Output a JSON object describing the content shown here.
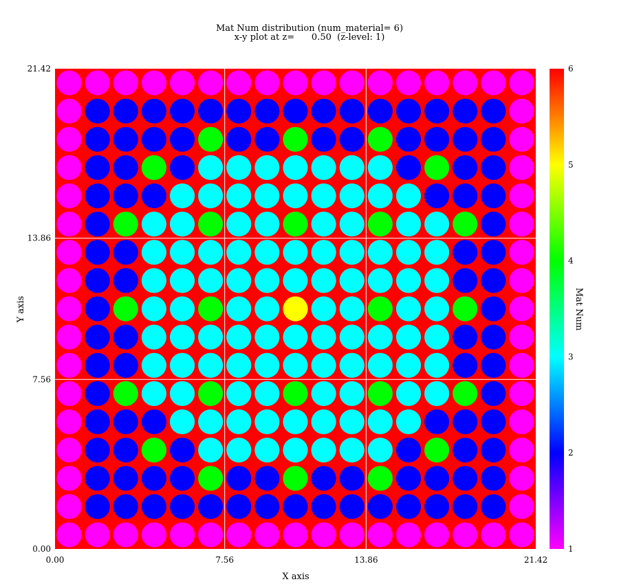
{
  "title_line1": "Mat Num distribution (num_material= 6)",
  "title_line2": "x-y plot at z=      0.50  (z-level: 1)",
  "chart_data": {
    "type": "heatmap",
    "title": "Mat Num distribution (num_material= 6)",
    "subtitle": "x-y plot at z=      0.50  (z-level: 1)",
    "xlabel": "X axis",
    "ylabel": "Y axis",
    "xlim": [
      0.0,
      21.42
    ],
    "ylim": [
      0.0,
      21.42
    ],
    "x_ticks": [
      "0.00",
      "7.56",
      "13.86",
      "21.42"
    ],
    "y_ticks": [
      "0.00",
      "7.56",
      "13.86",
      "21.42"
    ],
    "grid": true,
    "background_material": 6,
    "colorbar": {
      "label": "Mat Num",
      "min": 1,
      "max": 6,
      "ticks": [
        "1",
        "2",
        "3",
        "4",
        "5",
        "6"
      ]
    },
    "material_colors": {
      "1": "#ff00ff",
      "2": "#0000ff",
      "3": "#00ffff",
      "4": "#00ff00",
      "5": "#ffff00",
      "6": "#ff0000"
    },
    "pin_rows_top_to_bottom": [
      [
        1,
        1,
        1,
        1,
        1,
        1,
        1,
        1,
        1,
        1,
        1,
        1,
        1,
        1,
        1,
        1,
        1
      ],
      [
        1,
        2,
        2,
        2,
        2,
        2,
        2,
        2,
        2,
        2,
        2,
        2,
        2,
        2,
        2,
        2,
        1
      ],
      [
        1,
        2,
        2,
        2,
        2,
        4,
        2,
        2,
        4,
        2,
        2,
        4,
        2,
        2,
        2,
        2,
        1
      ],
      [
        1,
        2,
        2,
        4,
        2,
        3,
        3,
        3,
        3,
        3,
        3,
        3,
        2,
        4,
        2,
        2,
        1
      ],
      [
        1,
        2,
        2,
        2,
        3,
        3,
        3,
        3,
        3,
        3,
        3,
        3,
        3,
        2,
        2,
        2,
        1
      ],
      [
        1,
        2,
        4,
        3,
        3,
        4,
        3,
        3,
        4,
        3,
        3,
        4,
        3,
        3,
        4,
        2,
        1
      ],
      [
        1,
        2,
        2,
        3,
        3,
        3,
        3,
        3,
        3,
        3,
        3,
        3,
        3,
        3,
        2,
        2,
        1
      ],
      [
        1,
        2,
        2,
        3,
        3,
        3,
        3,
        3,
        3,
        3,
        3,
        3,
        3,
        3,
        2,
        2,
        1
      ],
      [
        1,
        2,
        4,
        3,
        3,
        4,
        3,
        3,
        5,
        3,
        3,
        4,
        3,
        3,
        4,
        2,
        1
      ],
      [
        1,
        2,
        2,
        3,
        3,
        3,
        3,
        3,
        3,
        3,
        3,
        3,
        3,
        3,
        2,
        2,
        1
      ],
      [
        1,
        2,
        2,
        3,
        3,
        3,
        3,
        3,
        3,
        3,
        3,
        3,
        3,
        3,
        2,
        2,
        1
      ],
      [
        1,
        2,
        4,
        3,
        3,
        4,
        3,
        3,
        4,
        3,
        3,
        4,
        3,
        3,
        4,
        2,
        1
      ],
      [
        1,
        2,
        2,
        2,
        3,
        3,
        3,
        3,
        3,
        3,
        3,
        3,
        3,
        2,
        2,
        2,
        1
      ],
      [
        1,
        2,
        2,
        4,
        2,
        3,
        3,
        3,
        3,
        3,
        3,
        3,
        2,
        4,
        2,
        2,
        1
      ],
      [
        1,
        2,
        2,
        2,
        2,
        4,
        2,
        2,
        4,
        2,
        2,
        4,
        2,
        2,
        2,
        2,
        1
      ],
      [
        1,
        2,
        2,
        2,
        2,
        2,
        2,
        2,
        2,
        2,
        2,
        2,
        2,
        2,
        2,
        2,
        1
      ],
      [
        1,
        1,
        1,
        1,
        1,
        1,
        1,
        1,
        1,
        1,
        1,
        1,
        1,
        1,
        1,
        1,
        1
      ]
    ]
  }
}
